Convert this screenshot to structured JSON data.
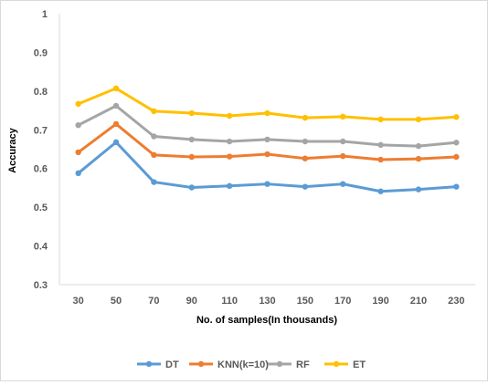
{
  "chart_data": {
    "type": "line",
    "title": "",
    "xlabel": "No. of samples(In thousands)",
    "ylabel": "Accuracy",
    "ylim": [
      0.3,
      1
    ],
    "yticks": [
      "0.3",
      "0.4",
      "0.5",
      "0.6",
      "0.7",
      "0.8",
      "0.9",
      "1"
    ],
    "categories": [
      "30",
      "50",
      "70",
      "90",
      "110",
      "130",
      "150",
      "170",
      "190",
      "210",
      "230"
    ],
    "grid": false,
    "legend_position": "bottom",
    "series": [
      {
        "name": "DT",
        "color": "#5b9bd5",
        "values": [
          0.588,
          0.668,
          0.565,
          0.551,
          0.555,
          0.56,
          0.553,
          0.56,
          0.541,
          0.546,
          0.553
        ]
      },
      {
        "name": "KNN(k=10)",
        "color": "#ed7d31",
        "values": [
          0.642,
          0.715,
          0.635,
          0.63,
          0.631,
          0.637,
          0.626,
          0.632,
          0.623,
          0.625,
          0.63
        ]
      },
      {
        "name": "RF",
        "color": "#a5a5a5",
        "values": [
          0.712,
          0.762,
          0.683,
          0.675,
          0.67,
          0.675,
          0.67,
          0.67,
          0.661,
          0.658,
          0.667
        ]
      },
      {
        "name": "ET",
        "color": "#ffc000",
        "values": [
          0.767,
          0.807,
          0.748,
          0.743,
          0.736,
          0.743,
          0.731,
          0.734,
          0.727,
          0.727,
          0.733
        ]
      }
    ]
  }
}
